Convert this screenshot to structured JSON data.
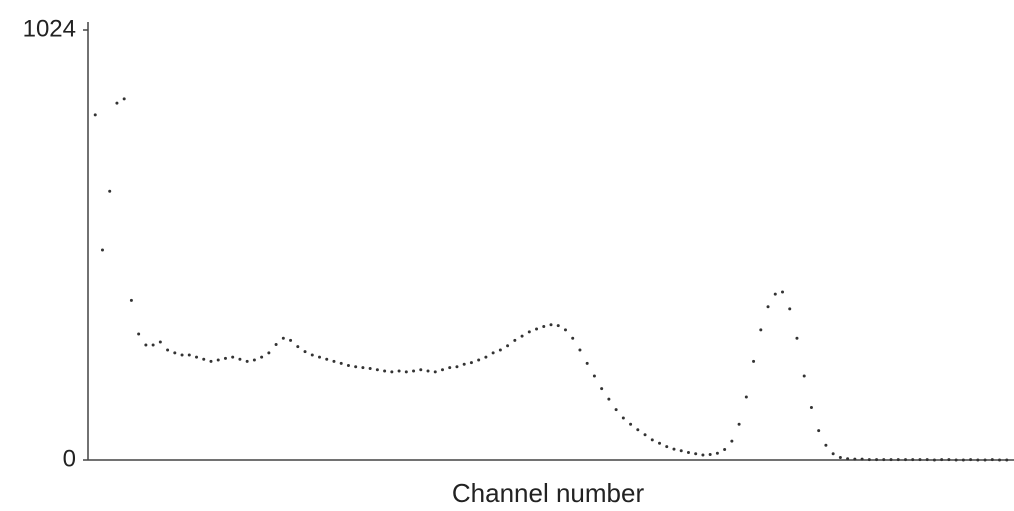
{
  "chart_data": {
    "type": "scatter",
    "x_label": "Channel number",
    "color": "#333333",
    "xlim": [
      0,
      1024
    ],
    "ylim": [
      0,
      1024
    ],
    "yticks": [
      0,
      1024
    ],
    "x": [
      8,
      16,
      24,
      32,
      40,
      48,
      56,
      64,
      72,
      80,
      88,
      96,
      104,
      112,
      120,
      128,
      136,
      144,
      152,
      160,
      168,
      176,
      184,
      192,
      200,
      208,
      216,
      224,
      232,
      240,
      248,
      256,
      264,
      272,
      280,
      288,
      296,
      304,
      312,
      320,
      328,
      336,
      344,
      352,
      360,
      368,
      376,
      384,
      392,
      400,
      408,
      416,
      424,
      432,
      440,
      448,
      456,
      464,
      472,
      480,
      488,
      496,
      504,
      512,
      520,
      528,
      536,
      544,
      552,
      560,
      568,
      576,
      584,
      592,
      600,
      608,
      616,
      624,
      632,
      640,
      648,
      656,
      664,
      672,
      680,
      688,
      696,
      704,
      712,
      720,
      728,
      736,
      744,
      752,
      760,
      768,
      776,
      784,
      792,
      800,
      808,
      816,
      824,
      832,
      840,
      848,
      856,
      864,
      872,
      880,
      888,
      896,
      904,
      912,
      920,
      928,
      936,
      944,
      952,
      960,
      968,
      976,
      984,
      992,
      1000,
      1008,
      1016
    ],
    "values": [
      822,
      500,
      640,
      850,
      860,
      380,
      300,
      274,
      274,
      281,
      262,
      255,
      250,
      250,
      245,
      240,
      235,
      238,
      242,
      245,
      240,
      235,
      238,
      245,
      255,
      275,
      290,
      285,
      270,
      258,
      250,
      245,
      240,
      235,
      230,
      225,
      222,
      220,
      218,
      215,
      212,
      210,
      212,
      210,
      212,
      215,
      212,
      210,
      215,
      220,
      222,
      228,
      232,
      238,
      245,
      255,
      262,
      272,
      285,
      295,
      305,
      312,
      318,
      322,
      320,
      310,
      290,
      262,
      230,
      200,
      170,
      145,
      120,
      100,
      85,
      72,
      60,
      48,
      40,
      32,
      26,
      22,
      18,
      15,
      12,
      13,
      16,
      25,
      45,
      85,
      150,
      235,
      310,
      365,
      395,
      400,
      360,
      290,
      200,
      125,
      70,
      35,
      15,
      6,
      3,
      2,
      2,
      1,
      1,
      1,
      1,
      1,
      1,
      1,
      1,
      1,
      0,
      1,
      1,
      0,
      0,
      1,
      0,
      0,
      1,
      0,
      0
    ]
  }
}
